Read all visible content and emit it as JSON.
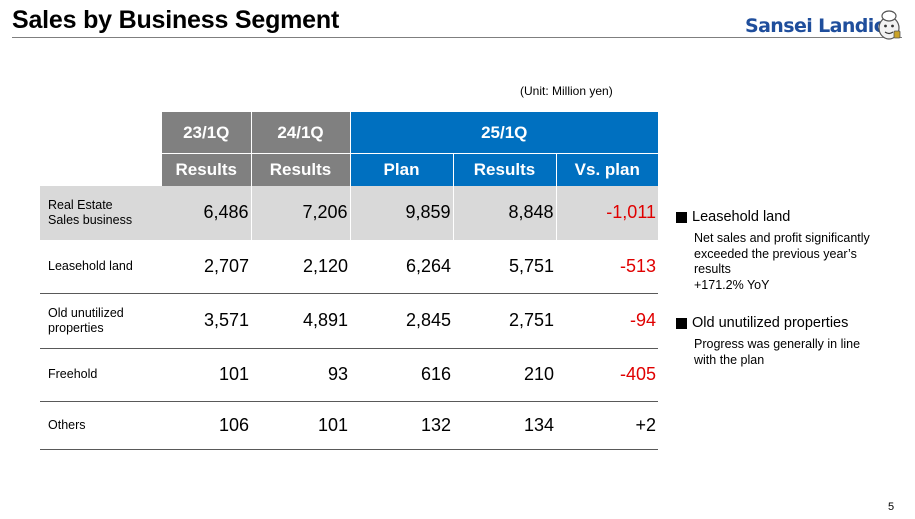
{
  "slide": {
    "title": "Sales by Business Segment",
    "logo_text": "Sansei Landic",
    "unit": "(Unit: Million yen)",
    "page_number": "5"
  },
  "table": {
    "period_headers": [
      "23/1Q",
      "24/1Q",
      "25/1Q"
    ],
    "sub_headers": [
      "Results",
      "Results",
      "Plan",
      "Results",
      "Vs. plan"
    ],
    "rows": [
      {
        "label_lines": [
          "Real Estate",
          "Sales business"
        ],
        "values": [
          "6,486",
          "7,206",
          "9,859",
          "8,848",
          "-1,011"
        ]
      },
      {
        "label_lines": [
          "Leasehold land",
          ""
        ],
        "values": [
          "2,707",
          "2,120",
          "6,264",
          "5,751",
          "-513"
        ]
      },
      {
        "label_lines": [
          "Old unutilized",
          "properties"
        ],
        "values": [
          "3,571",
          "4,891",
          "2,845",
          "2,751",
          "-94"
        ]
      },
      {
        "label_lines": [
          "Freehold",
          ""
        ],
        "values": [
          "101",
          "93",
          "616",
          "210",
          "-405"
        ]
      },
      {
        "label_lines": [
          "Others",
          ""
        ],
        "values": [
          "106",
          "101",
          "132",
          "134",
          "+2"
        ]
      }
    ]
  },
  "notes": [
    {
      "heading": "Leasehold land",
      "lines": [
        "Net sales and profit significantly",
        "exceeded the previous year’s",
        "results",
        "+171.2% YoY"
      ]
    },
    {
      "heading": "Old unutilized properties",
      "lines": [
        "Progress was generally in line",
        "with the plan"
      ]
    }
  ],
  "colors": {
    "header_gray": "#808080",
    "header_blue": "#0070c0",
    "total_row_bg": "#d9d9d9",
    "negative_red": "#e00000",
    "logo_blue": "#1f4e9c"
  }
}
